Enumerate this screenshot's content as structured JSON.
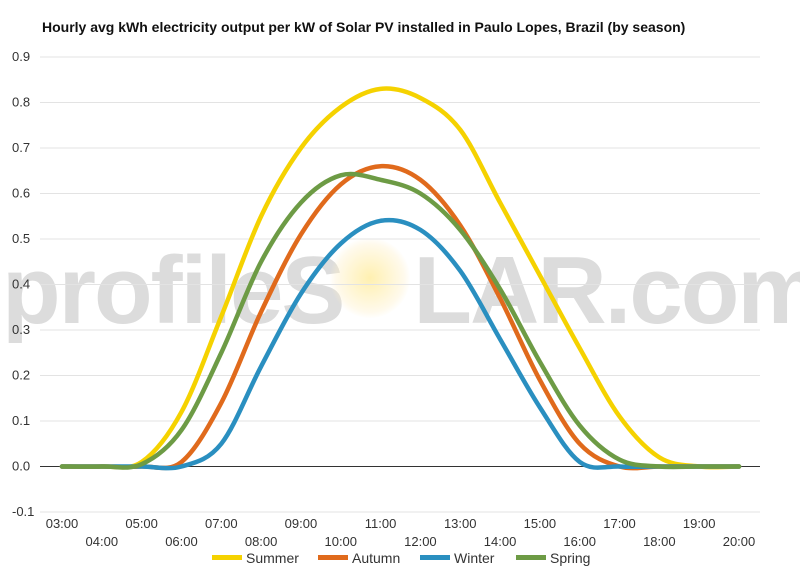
{
  "chart_data": {
    "type": "line",
    "title": "Hourly avg kWh electricity output per kW of Solar PV installed in Paulo Lopes, Brazil (by season)",
    "xlabel": "",
    "ylabel": "",
    "x": [
      "03:00",
      "04:00",
      "05:00",
      "06:00",
      "07:00",
      "08:00",
      "09:00",
      "10:00",
      "11:00",
      "12:00",
      "13:00",
      "14:00",
      "15:00",
      "16:00",
      "17:00",
      "18:00",
      "19:00",
      "20:00"
    ],
    "ylim": [
      -0.1,
      0.9
    ],
    "yticks": [
      "-0.1",
      "0.0",
      "0.1",
      "0.2",
      "0.3",
      "0.4",
      "0.5",
      "0.6",
      "0.7",
      "0.8",
      "0.9"
    ],
    "grid": true,
    "legend_position": "bottom",
    "series": [
      {
        "name": "Summer",
        "color": "#f5d200",
        "values": [
          0,
          0,
          0.01,
          0.12,
          0.33,
          0.55,
          0.7,
          0.79,
          0.83,
          0.81,
          0.74,
          0.58,
          0.42,
          0.26,
          0.11,
          0.02,
          0,
          0
        ]
      },
      {
        "name": "Autumn",
        "color": "#e06a1c",
        "values": [
          0,
          0,
          0,
          0.01,
          0.14,
          0.34,
          0.51,
          0.62,
          0.66,
          0.63,
          0.53,
          0.37,
          0.19,
          0.05,
          0,
          0,
          0,
          0
        ]
      },
      {
        "name": "Winter",
        "color": "#2a8fc0",
        "values": [
          0,
          0,
          0,
          0,
          0.05,
          0.22,
          0.38,
          0.49,
          0.54,
          0.52,
          0.43,
          0.28,
          0.13,
          0.01,
          0,
          0,
          0,
          0
        ]
      },
      {
        "name": "Spring",
        "color": "#6d9b45",
        "values": [
          0,
          0,
          0.005,
          0.08,
          0.25,
          0.45,
          0.58,
          0.64,
          0.63,
          0.6,
          0.52,
          0.39,
          0.23,
          0.09,
          0.015,
          0,
          0,
          0
        ]
      }
    ]
  },
  "watermark": {
    "text_left": "profileS",
    "text_right": "LAR.com"
  }
}
